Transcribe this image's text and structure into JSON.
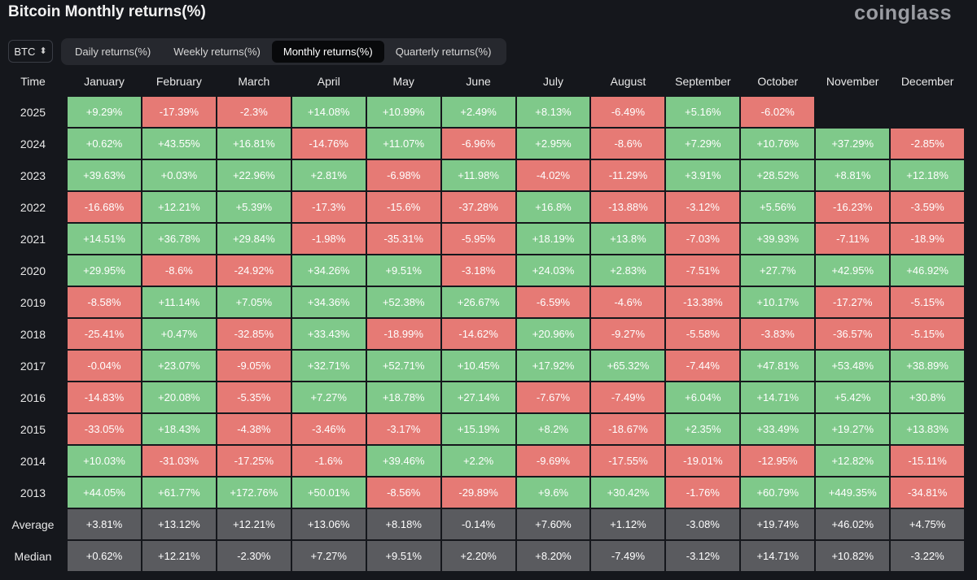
{
  "header": {
    "title": "Bitcoin Monthly returns(%)",
    "brand": "coinglass"
  },
  "coin_select": {
    "value": "BTC",
    "icon": "chevron-updown-icon"
  },
  "tabs": [
    {
      "label": "Daily returns(%)",
      "active": false
    },
    {
      "label": "Weekly returns(%)",
      "active": false
    },
    {
      "label": "Monthly returns(%)",
      "active": true
    },
    {
      "label": "Quarterly returns(%)",
      "active": false
    }
  ],
  "colors": {
    "positive": "#7fc98a",
    "negative": "#e67a75",
    "stat": "#5a5b5f",
    "background": "#15171c"
  },
  "chart_data": {
    "type": "table",
    "title": "Bitcoin Monthly returns(%)",
    "row_header": "Time",
    "columns": [
      "January",
      "February",
      "March",
      "April",
      "May",
      "June",
      "July",
      "August",
      "September",
      "October",
      "November",
      "December"
    ],
    "rows": [
      {
        "label": "2025",
        "values": [
          "+9.29%",
          "-17.39%",
          "-2.3%",
          "+14.08%",
          "+10.99%",
          "+2.49%",
          "+8.13%",
          "-6.49%",
          "+5.16%",
          "-6.02%",
          "",
          ""
        ]
      },
      {
        "label": "2024",
        "values": [
          "+0.62%",
          "+43.55%",
          "+16.81%",
          "-14.76%",
          "+11.07%",
          "-6.96%",
          "+2.95%",
          "-8.6%",
          "+7.29%",
          "+10.76%",
          "+37.29%",
          "-2.85%"
        ]
      },
      {
        "label": "2023",
        "values": [
          "+39.63%",
          "+0.03%",
          "+22.96%",
          "+2.81%",
          "-6.98%",
          "+11.98%",
          "-4.02%",
          "-11.29%",
          "+3.91%",
          "+28.52%",
          "+8.81%",
          "+12.18%"
        ]
      },
      {
        "label": "2022",
        "values": [
          "-16.68%",
          "+12.21%",
          "+5.39%",
          "-17.3%",
          "-15.6%",
          "-37.28%",
          "+16.8%",
          "-13.88%",
          "-3.12%",
          "+5.56%",
          "-16.23%",
          "-3.59%"
        ]
      },
      {
        "label": "2021",
        "values": [
          "+14.51%",
          "+36.78%",
          "+29.84%",
          "-1.98%",
          "-35.31%",
          "-5.95%",
          "+18.19%",
          "+13.8%",
          "-7.03%",
          "+39.93%",
          "-7.11%",
          "-18.9%"
        ]
      },
      {
        "label": "2020",
        "values": [
          "+29.95%",
          "-8.6%",
          "-24.92%",
          "+34.26%",
          "+9.51%",
          "-3.18%",
          "+24.03%",
          "+2.83%",
          "-7.51%",
          "+27.7%",
          "+42.95%",
          "+46.92%"
        ]
      },
      {
        "label": "2019",
        "values": [
          "-8.58%",
          "+11.14%",
          "+7.05%",
          "+34.36%",
          "+52.38%",
          "+26.67%",
          "-6.59%",
          "-4.6%",
          "-13.38%",
          "+10.17%",
          "-17.27%",
          "-5.15%"
        ]
      },
      {
        "label": "2018",
        "values": [
          "-25.41%",
          "+0.47%",
          "-32.85%",
          "+33.43%",
          "-18.99%",
          "-14.62%",
          "+20.96%",
          "-9.27%",
          "-5.58%",
          "-3.83%",
          "-36.57%",
          "-5.15%"
        ]
      },
      {
        "label": "2017",
        "values": [
          "-0.04%",
          "+23.07%",
          "-9.05%",
          "+32.71%",
          "+52.71%",
          "+10.45%",
          "+17.92%",
          "+65.32%",
          "-7.44%",
          "+47.81%",
          "+53.48%",
          "+38.89%"
        ]
      },
      {
        "label": "2016",
        "values": [
          "-14.83%",
          "+20.08%",
          "-5.35%",
          "+7.27%",
          "+18.78%",
          "+27.14%",
          "-7.67%",
          "-7.49%",
          "+6.04%",
          "+14.71%",
          "+5.42%",
          "+30.8%"
        ]
      },
      {
        "label": "2015",
        "values": [
          "-33.05%",
          "+18.43%",
          "-4.38%",
          "-3.46%",
          "-3.17%",
          "+15.19%",
          "+8.2%",
          "-18.67%",
          "+2.35%",
          "+33.49%",
          "+19.27%",
          "+13.83%"
        ]
      },
      {
        "label": "2014",
        "values": [
          "+10.03%",
          "-31.03%",
          "-17.25%",
          "-1.6%",
          "+39.46%",
          "+2.2%",
          "-9.69%",
          "-17.55%",
          "-19.01%",
          "-12.95%",
          "+12.82%",
          "-15.11%"
        ]
      },
      {
        "label": "2013",
        "values": [
          "+44.05%",
          "+61.77%",
          "+172.76%",
          "+50.01%",
          "-8.56%",
          "-29.89%",
          "+9.6%",
          "+30.42%",
          "-1.76%",
          "+60.79%",
          "+449.35%",
          "-34.81%"
        ]
      }
    ],
    "summary_rows": [
      {
        "label": "Average",
        "values": [
          "+3.81%",
          "+13.12%",
          "+12.21%",
          "+13.06%",
          "+8.18%",
          "-0.14%",
          "+7.60%",
          "+1.12%",
          "-3.08%",
          "+19.74%",
          "+46.02%",
          "+4.75%"
        ]
      },
      {
        "label": "Median",
        "values": [
          "+0.62%",
          "+12.21%",
          "-2.30%",
          "+7.27%",
          "+9.51%",
          "+2.20%",
          "+8.20%",
          "-7.49%",
          "-3.12%",
          "+14.71%",
          "+10.82%",
          "-3.22%"
        ]
      }
    ]
  }
}
